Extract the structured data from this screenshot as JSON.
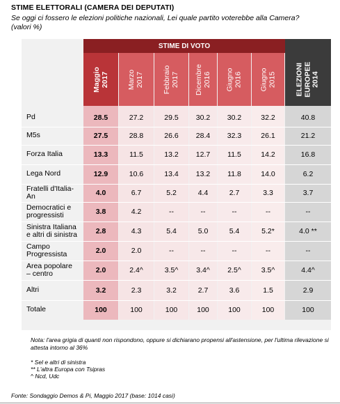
{
  "header": {
    "title": "STIME ELETTORALI (CAMERA DEI DEPUTATI)",
    "subtitle": "Se oggi ci fossero le elezioni politiche nazionali, Lei quale partito voterebbe alla Camera? (valori %)"
  },
  "chart_data": {
    "type": "table",
    "group_header": "STIME DI VOTO",
    "columns": [
      "Maggio\n2017",
      "Marzo\n2017",
      "Febbraio\n2017",
      "Dicembre\n2016",
      "Giugno\n2016",
      "Giugno\n2015",
      "ELEZIONI\nEUROPEE\n2014"
    ],
    "rows": [
      {
        "label": "Pd",
        "values": [
          "28.5",
          "27.2",
          "29.5",
          "30.2",
          "30.2",
          "32.2",
          "40.8"
        ]
      },
      {
        "label": "M5s",
        "values": [
          "27.5",
          "28.8",
          "26.6",
          "28.4",
          "32.3",
          "26.1",
          "21.2"
        ]
      },
      {
        "label": "Forza Italia",
        "values": [
          "13.3",
          "11.5",
          "13.2",
          "12.7",
          "11.5",
          "14.2",
          "16.8"
        ]
      },
      {
        "label": "Lega Nord",
        "values": [
          "12.9",
          "10.6",
          "13.4",
          "13.2",
          "11.8",
          "14.0",
          "6.2"
        ]
      },
      {
        "label": "Fratelli d'Italia-\nAn",
        "values": [
          "4.0",
          "6.7",
          "5.2",
          "4.4",
          "2.7",
          "3.3",
          "3.7"
        ]
      },
      {
        "label": "Democratici e\nprogressisti",
        "values": [
          "3.8",
          "4.2",
          "--",
          "--",
          "--",
          "--",
          "--"
        ]
      },
      {
        "label": "Sinistra Italiana\ne altri di sinistra",
        "values": [
          "2.8",
          "4.3",
          "5.4",
          "5.0",
          "5.4",
          "5.2*",
          "4.0 **"
        ]
      },
      {
        "label": "Campo\nProgressista",
        "values": [
          "2.0",
          "2.0",
          "--",
          "--",
          "--",
          "--",
          "--"
        ]
      },
      {
        "label": "Area popolare\n– centro",
        "values": [
          "2.0",
          "2.4^",
          "3.5^",
          "3.4^",
          "2.5^",
          "3.5^",
          "4.4^"
        ]
      },
      {
        "label": "Altri",
        "values": [
          "3.2",
          "2.3",
          "3.2",
          "2.7",
          "3.6",
          "1.5",
          "2.9"
        ]
      },
      {
        "label": "Totale",
        "values": [
          "100",
          "100",
          "100",
          "100",
          "100",
          "100",
          "100"
        ]
      }
    ]
  },
  "notes": {
    "main": "Nota: l'area grigia di quanti non rispondono, oppure si dichiarano propensi all'astensione, per l'ultima rilevazione si attesta intorno al 36%",
    "footnote1": "* Sel e altri di sinistra",
    "footnote2": "** L'altra Europa con Tsipras",
    "footnote3": "^ Ncd, Udc"
  },
  "source": "Fonte: Sondaggio Demos & Pi, Maggio 2017 (base: 1014 casi)",
  "colors": {
    "header_band": "#8a1f22",
    "main_col_header": "#b93438",
    "sub_col_header": "#d65c60",
    "main_col_bg": "#ecb8bd",
    "sub_col_bg": [
      "#f6e4e5",
      "#f7e6e7",
      "#f7e8e9",
      "#f8eaeb",
      "#f9ecec",
      "#fae9ea"
    ],
    "euro_header": "#3b3b3b",
    "euro_bg": "#d6d6d6",
    "panel_bg": "#f1f1f1"
  }
}
